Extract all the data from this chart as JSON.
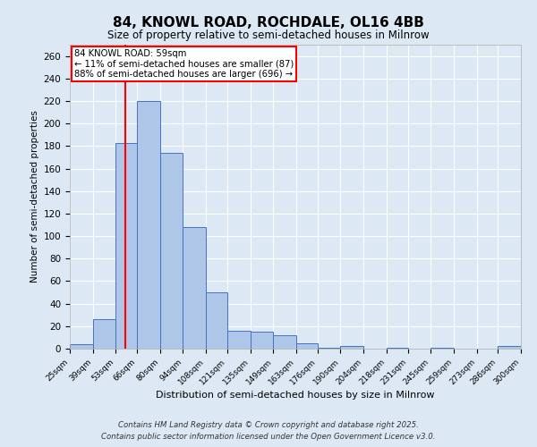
{
  "title": "84, KNOWL ROAD, ROCHDALE, OL16 4BB",
  "subtitle": "Size of property relative to semi-detached houses in Milnrow",
  "xlabel": "Distribution of semi-detached houses by size in Milnrow",
  "ylabel": "Number of semi-detached properties",
  "footnote1": "Contains HM Land Registry data © Crown copyright and database right 2025.",
  "footnote2": "Contains public sector information licensed under the Open Government Licence v3.0.",
  "annotation_title": "84 KNOWL ROAD: 59sqm",
  "annotation_line1": "← 11% of semi-detached houses are smaller (87)",
  "annotation_line2": "88% of semi-detached houses are larger (696) →",
  "property_size": 59,
  "bar_edges": [
    25,
    39,
    53,
    66,
    80,
    94,
    108,
    121,
    135,
    149,
    163,
    176,
    190,
    204,
    218,
    231,
    245,
    259,
    273,
    286,
    300
  ],
  "bar_heights": [
    4,
    26,
    183,
    220,
    174,
    108,
    50,
    16,
    15,
    12,
    5,
    1,
    2,
    0,
    1,
    0,
    1,
    0,
    0,
    2
  ],
  "bar_color": "#aec6e8",
  "bar_edge_color": "#4472c4",
  "vline_color": "red",
  "vline_x": 59,
  "ylim": [
    0,
    270
  ],
  "yticks": [
    0,
    20,
    40,
    60,
    80,
    100,
    120,
    140,
    160,
    180,
    200,
    220,
    240,
    260
  ],
  "bg_color": "#dce9f5",
  "grid_color": "white",
  "annotation_box_color": "white",
  "annotation_box_edge": "red"
}
